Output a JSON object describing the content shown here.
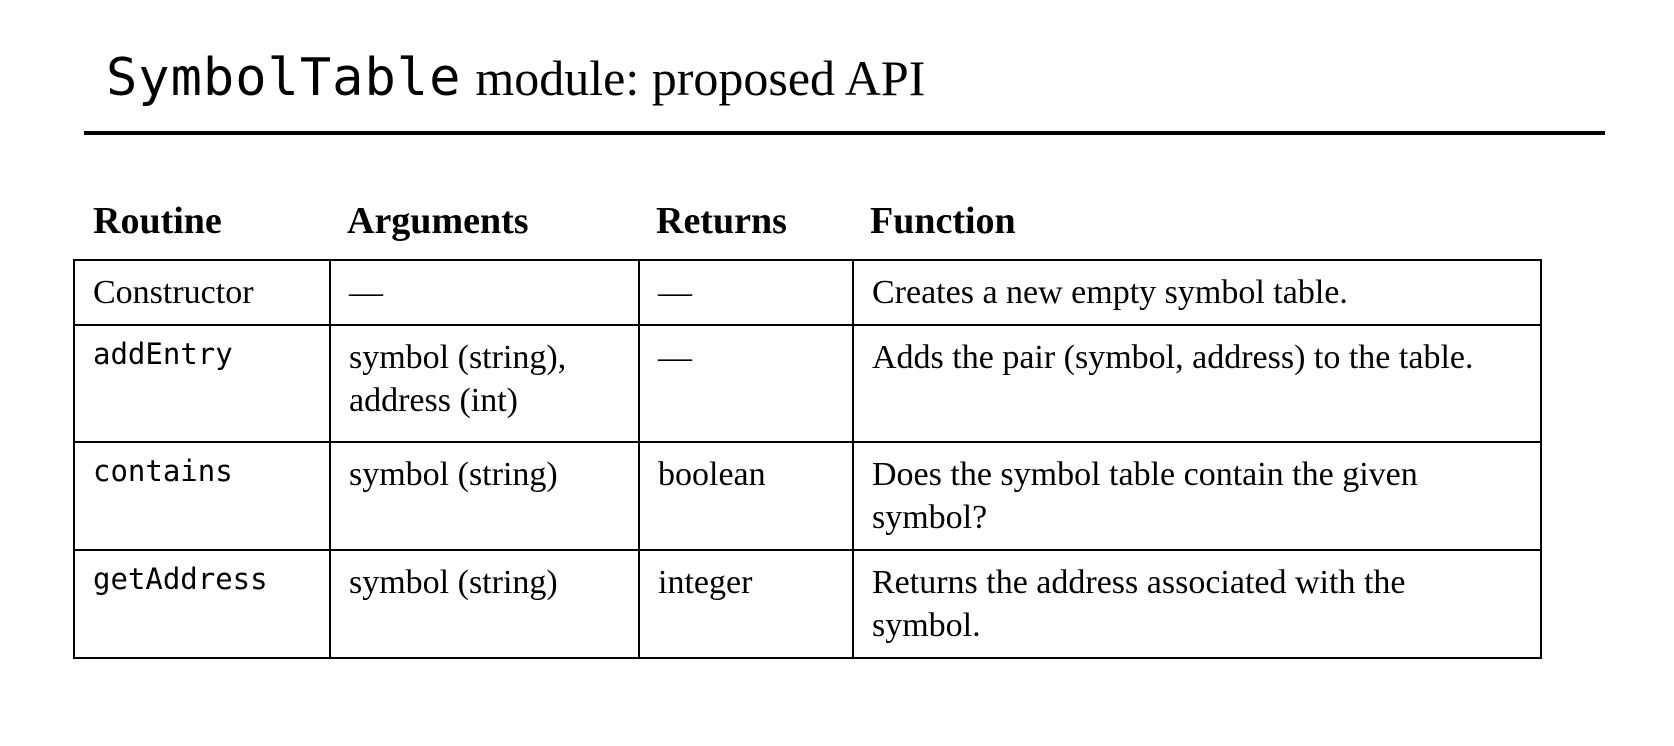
{
  "title": {
    "code": "SymbolTable",
    "text": "module: proposed API"
  },
  "table": {
    "headers": [
      "Routine",
      "Arguments",
      "Returns",
      "Function"
    ],
    "rows": [
      {
        "routine": "Constructor",
        "arguments": "—",
        "returns": "—",
        "function": "Creates a new empty symbol table."
      },
      {
        "routine": "addEntry",
        "arguments": "symbol (string),\naddress (int)",
        "returns": "—",
        "function": "Adds the pair (symbol, address) to the table."
      },
      {
        "routine": "contains",
        "arguments": "symbol (string)",
        "returns": "boolean",
        "function": "Does the symbol table contain the given symbol?"
      },
      {
        "routine": "getAddress",
        "arguments": "symbol (string)",
        "returns": "integer",
        "function": "Returns the address associated with the symbol."
      }
    ]
  }
}
